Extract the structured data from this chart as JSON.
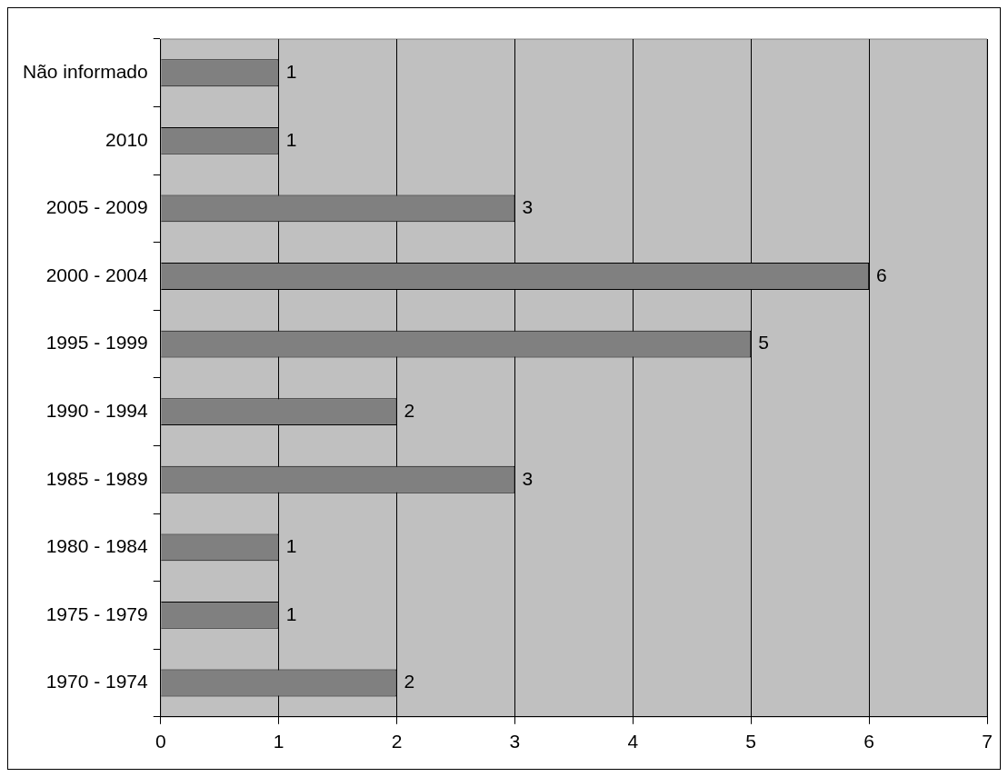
{
  "chart_data": {
    "type": "bar",
    "orientation": "horizontal",
    "categories": [
      "Não informado",
      "2010",
      "2005 - 2009",
      "2000 - 2004",
      "1995 - 1999",
      "1990 - 1994",
      "1985 - 1989",
      "1980 - 1984",
      "1975 - 1979",
      "1970 - 1974"
    ],
    "values": [
      1,
      1,
      3,
      6,
      5,
      2,
      3,
      1,
      1,
      2
    ],
    "color": "#808080",
    "xlim": [
      0,
      7
    ],
    "xticks": [
      0,
      1,
      2,
      3,
      4,
      5,
      6,
      7
    ],
    "grid": "x",
    "data_labels": true,
    "legend": false
  }
}
